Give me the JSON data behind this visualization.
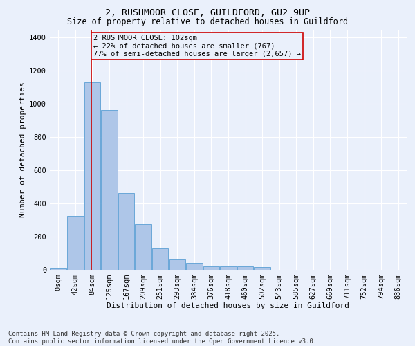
{
  "title_line1": "2, RUSHMOOR CLOSE, GUILDFORD, GU2 9UP",
  "title_line2": "Size of property relative to detached houses in Guildford",
  "xlabel": "Distribution of detached houses by size in Guildford",
  "ylabel": "Number of detached properties",
  "footnote": "Contains HM Land Registry data © Crown copyright and database right 2025.\nContains public sector information licensed under the Open Government Licence v3.0.",
  "bar_labels": [
    "0sqm",
    "42sqm",
    "84sqm",
    "125sqm",
    "167sqm",
    "209sqm",
    "251sqm",
    "293sqm",
    "334sqm",
    "376sqm",
    "418sqm",
    "460sqm",
    "502sqm",
    "543sqm",
    "585sqm",
    "627sqm",
    "669sqm",
    "711sqm",
    "752sqm",
    "794sqm",
    "836sqm"
  ],
  "bar_values": [
    10,
    325,
    1130,
    965,
    465,
    275,
    130,
    68,
    40,
    22,
    22,
    22,
    18,
    2,
    2,
    2,
    2,
    2,
    2,
    2,
    2
  ],
  "bar_color": "#aec6e8",
  "bar_edge_color": "#5a9fd4",
  "ylim": [
    0,
    1450
  ],
  "annotation_text": "2 RUSHMOOR CLOSE: 102sqm\n← 22% of detached houses are smaller (767)\n77% of semi-detached houses are larger (2,657) →",
  "vline_color": "#cc0000",
  "box_color": "#cc0000",
  "background_color": "#eaf0fb",
  "grid_color": "#ffffff",
  "title_fontsize": 9.5,
  "subtitle_fontsize": 8.5,
  "axis_label_fontsize": 8,
  "tick_fontsize": 7.5,
  "annotation_fontsize": 7.5,
  "footnote_fontsize": 6.5
}
